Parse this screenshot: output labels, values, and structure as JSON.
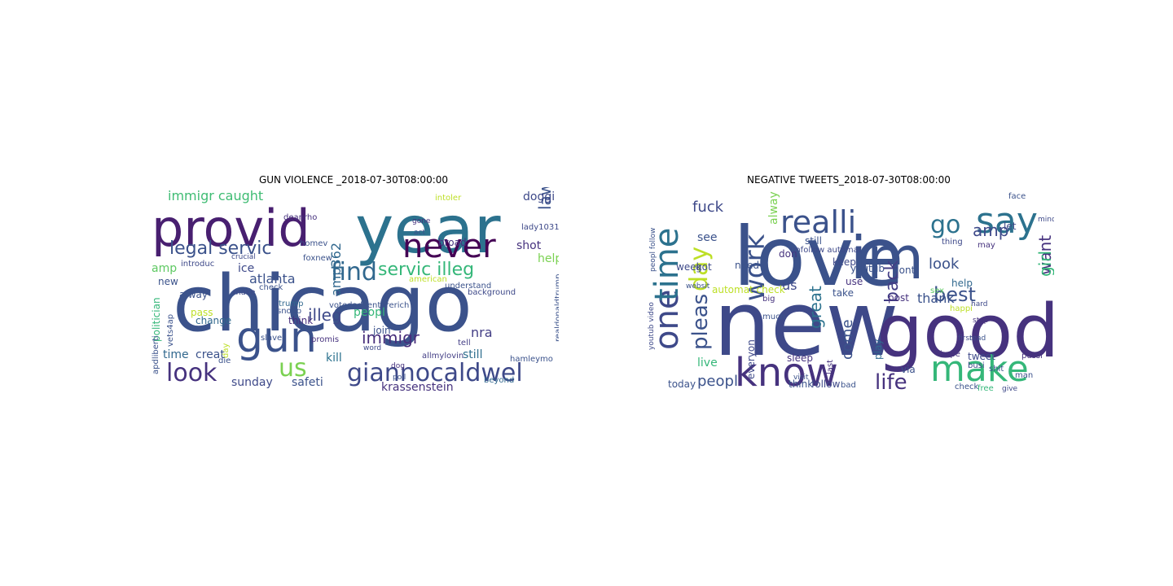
{
  "chart_data": [
    {
      "type": "wordcloud",
      "title": "GUN VIOLENCE _2018-07-30T08:00:00",
      "words": [
        {
          "text": "chicago",
          "color": "#3b528b"
        },
        {
          "text": "year",
          "color": "#2c728e"
        },
        {
          "text": "provid",
          "color": "#481f70"
        },
        {
          "text": "never",
          "color": "#440154"
        },
        {
          "text": "gun",
          "color": "#3b528b"
        },
        {
          "text": "giannocaldwel",
          "color": "#3e4989"
        },
        {
          "text": "find",
          "color": "#31688e"
        },
        {
          "text": "look",
          "color": "#46327e"
        },
        {
          "text": "servic illeg",
          "color": "#35b779"
        },
        {
          "text": "legal servic",
          "color": "#3b528b"
        },
        {
          "text": "immigr caught",
          "color": "#3fbc73"
        },
        {
          "text": "us",
          "color": "#7ad151"
        },
        {
          "text": "illeg",
          "color": "#3e4989"
        },
        {
          "text": "immigr",
          "color": "#472d7b"
        },
        {
          "text": "atlanta",
          "color": "#3b528b"
        },
        {
          "text": "nra",
          "color": "#433e85"
        },
        {
          "text": "still",
          "color": "#2e6e8e"
        },
        {
          "text": "peopl",
          "color": "#35b779"
        },
        {
          "text": "krassenstein",
          "color": "#46327e"
        },
        {
          "text": "safeti",
          "color": "#3b528b"
        },
        {
          "text": "sunday",
          "color": "#3e4989"
        },
        {
          "text": "time",
          "color": "#31688e"
        },
        {
          "text": "creat",
          "color": "#3b528b"
        },
        {
          "text": "kill",
          "color": "#2c728e"
        },
        {
          "text": "alway",
          "color": "#3b528b"
        },
        {
          "text": "shot",
          "color": "#46327e"
        },
        {
          "text": "help",
          "color": "#7ad151"
        },
        {
          "text": "amp",
          "color": "#5ec962"
        },
        {
          "text": "ice",
          "color": "#3e4989"
        },
        {
          "text": "new",
          "color": "#3b528b"
        },
        {
          "text": "law",
          "color": "#3b528b"
        },
        {
          "text": "doggi",
          "color": "#3e4989"
        },
        {
          "text": "broad",
          "color": "#46327e"
        },
        {
          "text": "pass",
          "color": "#bddf26"
        },
        {
          "text": "change",
          "color": "#31688e"
        },
        {
          "text": "think",
          "color": "#472d7b"
        },
        {
          "text": "join",
          "color": "#3b528b"
        },
        {
          "text": "tell",
          "color": "#433e85"
        },
        {
          "text": "die",
          "color": "#3b528b"
        },
        {
          "text": "trump",
          "color": "#31688e"
        },
        {
          "text": "snoop",
          "color": "#3b528b"
        },
        {
          "text": "politician",
          "color": "#35b779"
        },
        {
          "text": "vets4ap",
          "color": "#3b528b"
        },
        {
          "text": "apdliberti",
          "color": "#3b528b"
        },
        {
          "text": "introduc",
          "color": "#3e4989"
        },
        {
          "text": "deanrho",
          "color": "#46327e"
        },
        {
          "text": "foxnew",
          "color": "#3b528b"
        },
        {
          "text": "american",
          "color": "#bddf26"
        },
        {
          "text": "understand",
          "color": "#3b528b"
        },
        {
          "text": "background",
          "color": "#3e4989"
        },
        {
          "text": "hamleymo",
          "color": "#3b528b"
        },
        {
          "text": "allmylovin",
          "color": "#433e85"
        },
        {
          "text": "beyond",
          "color": "#31688e"
        },
        {
          "text": "votedadventurerich",
          "color": "#3b528b"
        },
        {
          "text": "lady10314",
          "color": "#3e4989"
        },
        {
          "text": "realdonaldtrump",
          "color": "#3b528b"
        },
        {
          "text": "gone",
          "color": "#46327e"
        },
        {
          "text": "act",
          "color": "#3b528b"
        },
        {
          "text": "crucial",
          "color": "#3e4989"
        },
        {
          "text": "slave",
          "color": "#3b528b"
        },
        {
          "text": "promis",
          "color": "#46327e"
        },
        {
          "text": "make",
          "color": "#3e4989"
        },
        {
          "text": "homev",
          "color": "#3b528b"
        },
        {
          "text": "poll",
          "color": "#3b528b"
        },
        {
          "text": "dog",
          "color": "#46327e"
        },
        {
          "text": "word",
          "color": "#3e4989"
        },
        {
          "text": "intoler",
          "color": "#bddf26"
        },
        {
          "text": "amp362",
          "color": "#31688e"
        },
        {
          "text": "check",
          "color": "#3b528b"
        },
        {
          "text": "day",
          "color": "#bddf26"
        }
      ]
    },
    {
      "type": "wordcloud",
      "title": "NEGATIVE TWEETS_2018-07-30T08:00:00",
      "words": [
        {
          "text": "love",
          "color": "#3b528b"
        },
        {
          "text": "new",
          "color": "#3e4989"
        },
        {
          "text": "good",
          "color": "#46327e"
        },
        {
          "text": "im",
          "color": "#3b528b"
        },
        {
          "text": "make",
          "color": "#35b779"
        },
        {
          "text": "know",
          "color": "#46327e"
        },
        {
          "text": "one",
          "color": "#3e4989"
        },
        {
          "text": "time",
          "color": "#2c728e"
        },
        {
          "text": "realli",
          "color": "#3b528b"
        },
        {
          "text": "say",
          "color": "#2c728e"
        },
        {
          "text": "go",
          "color": "#2c728e"
        },
        {
          "text": "work",
          "color": "#3b528b"
        },
        {
          "text": "life",
          "color": "#46327e"
        },
        {
          "text": "best",
          "color": "#3b528b"
        },
        {
          "text": "day",
          "color": "#bddf26"
        },
        {
          "text": "pleas",
          "color": "#3b528b"
        },
        {
          "text": "peopl",
          "color": "#3b528b"
        },
        {
          "text": "back",
          "color": "#433e85"
        },
        {
          "text": "want",
          "color": "#46327e"
        },
        {
          "text": "girl",
          "color": "#35b779"
        },
        {
          "text": "amp",
          "color": "#3e4989"
        },
        {
          "text": "look",
          "color": "#3b528b"
        },
        {
          "text": "thank",
          "color": "#3b528b"
        },
        {
          "text": "fuck",
          "color": "#3e4989"
        },
        {
          "text": "great",
          "color": "#2c728e"
        },
        {
          "text": "see",
          "color": "#3b528b"
        },
        {
          "text": "us",
          "color": "#3e4989"
        },
        {
          "text": "come",
          "color": "#3b528b"
        },
        {
          "text": "live",
          "color": "#35b779"
        },
        {
          "text": "alway",
          "color": "#7ad151"
        },
        {
          "text": "automat check",
          "color": "#bddf26"
        },
        {
          "text": "need",
          "color": "#3b528b"
        },
        {
          "text": "got",
          "color": "#3e4989"
        },
        {
          "text": "play",
          "color": "#31688e"
        },
        {
          "text": "post",
          "color": "#46327e"
        },
        {
          "text": "take",
          "color": "#3b528b"
        },
        {
          "text": "keep",
          "color": "#3e4989"
        },
        {
          "text": "youtub",
          "color": "#3b528b"
        },
        {
          "text": "use",
          "color": "#46327e"
        },
        {
          "text": "let",
          "color": "#3e4989"
        },
        {
          "text": "dont",
          "color": "#3b528b"
        },
        {
          "text": "help",
          "color": "#31688e"
        },
        {
          "text": "via",
          "color": "#3b528b"
        },
        {
          "text": "sleep",
          "color": "#46327e"
        },
        {
          "text": "think",
          "color": "#3b528b"
        },
        {
          "text": "follow",
          "color": "#3e4989"
        },
        {
          "text": "today",
          "color": "#3b528b"
        },
        {
          "text": "week",
          "color": "#3e4989"
        },
        {
          "text": "still",
          "color": "#3b528b"
        },
        {
          "text": "don",
          "color": "#46327e"
        },
        {
          "text": "unfollow automat",
          "color": "#3e4989"
        },
        {
          "text": "much",
          "color": "#3b528b"
        },
        {
          "text": "first",
          "color": "#3e4989"
        },
        {
          "text": "hope",
          "color": "#46327e"
        },
        {
          "text": "free",
          "color": "#35b779"
        },
        {
          "text": "check",
          "color": "#3b528b"
        },
        {
          "text": "thing",
          "color": "#3e4989"
        },
        {
          "text": "may",
          "color": "#46327e"
        },
        {
          "text": "face",
          "color": "#3b528b"
        },
        {
          "text": "last",
          "color": "#46327e"
        },
        {
          "text": "everyon",
          "color": "#3e4989"
        },
        {
          "text": "peopl follow",
          "color": "#3b528b"
        },
        {
          "text": "youtub video",
          "color": "#3e4989"
        },
        {
          "text": "websit",
          "color": "#3b528b"
        },
        {
          "text": "happi",
          "color": "#bddf26"
        },
        {
          "text": "pussi",
          "color": "#46327e"
        },
        {
          "text": "man",
          "color": "#3b528b"
        },
        {
          "text": "busi",
          "color": "#3e4989"
        },
        {
          "text": "sex",
          "color": "#5ec962"
        },
        {
          "text": "shit",
          "color": "#3b528b"
        },
        {
          "text": "mind",
          "color": "#3e4989"
        },
        {
          "text": "big",
          "color": "#46327e"
        },
        {
          "text": "bad",
          "color": "#3b528b"
        },
        {
          "text": "tweet",
          "color": "#3e4989"
        },
        {
          "text": "visit",
          "color": "#3b528b"
        },
        {
          "text": "give",
          "color": "#3e4989"
        },
        {
          "text": "stop",
          "color": "#46327e"
        },
        {
          "text": "read",
          "color": "#3b528b"
        },
        {
          "text": "hard",
          "color": "#3e4989"
        }
      ]
    }
  ]
}
